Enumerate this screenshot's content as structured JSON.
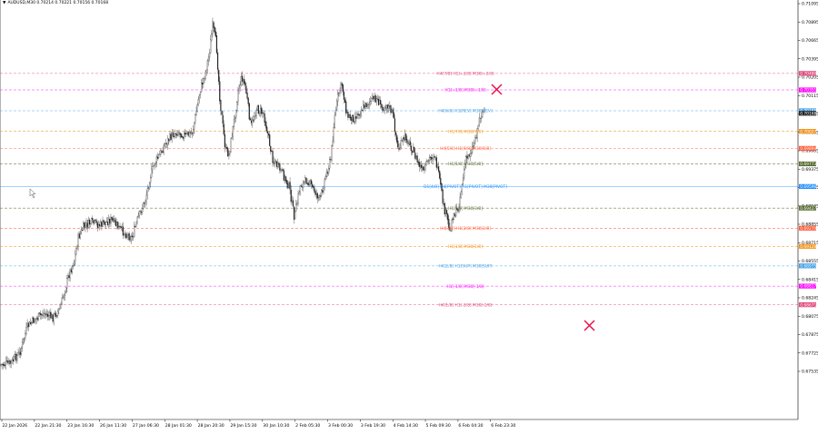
{
  "header": {
    "symbol_line": "AUDUSD,M30  0.70214 0.70221 0.70156 0.70168",
    "arrow_glyph": "▼"
  },
  "axis": {
    "price_ticks": [
      "0.71095",
      "0.70895",
      "0.70665",
      "0.70395",
      "0.70205",
      "0.70115",
      "0.69925",
      "0.69835",
      "0.69605",
      "0.69375",
      "0.69145",
      "0.68945",
      "0.68855",
      "0.68715",
      "0.68555",
      "0.68415",
      "0.68245",
      "0.68075",
      "0.67875",
      "0.67725",
      "0.67535"
    ],
    "time_ticks": [
      "22 Jan 2026",
      "22 Jan 21:30",
      "23 Jan 16:30",
      "26 Jan 11:30",
      "27 Jan 06:30",
      "28 Jan 01:30",
      "28 Jan 20:30",
      "29 Jan 15:30",
      "30 Jan 10:30",
      "2 Feb 05:30",
      "3 Feb 00:30",
      "3 Feb 19:30",
      "4 Feb 14:30",
      "5 Feb 09:30",
      "6 Feb 04:30",
      "6 Feb 23:30"
    ]
  },
  "levels": [
    {
      "label": "H4[7/8] H1[+2/8] M30[+2/8]",
      "price": "0.70480",
      "color": "#e0457b"
    },
    {
      "label": "H1[+1/8] M30[+1/8]",
      "price": "0.70351",
      "color": "#ff00ff"
    },
    {
      "label": "H4[6/8] H1[REV] M30[REV]",
      "price": "0.70188",
      "color": "#3d9ee8"
    },
    {
      "label": "H1[7/8] M30[7/8]",
      "price": "0.70027",
      "color": "#f3921a"
    },
    {
      "label": "H4[5/8] H1[6/8] M30[6/8]",
      "price": "0.69894",
      "color": "#ff5a36"
    },
    {
      "label": "H1[5/8] M30[5/8]",
      "price": "0.69773",
      "color": "#556b2f"
    },
    {
      "label": "D1[4/8] H4[PIVOT] H1[PIVOT] M30[PIVOT]",
      "price": "0.69596",
      "color": "#1e90ff"
    },
    {
      "label": "H1[3/8] M30[3/8]",
      "price": "0.69427",
      "color": "#556b2f"
    },
    {
      "label": "H4[3/8] H1[2/8] M30[2/8]",
      "price": "0.69270",
      "color": "#ff5a36"
    },
    {
      "label": "H1[1/8] M30[1/8]",
      "price": "0.69128",
      "color": "#f3921a"
    },
    {
      "label": "H4[2/8] H1[SUP] M30[SUP]",
      "price": "0.68975",
      "color": "#3d9ee8"
    },
    {
      "label": "H1[-1/8] M30[-1/8]",
      "price": "0.68817",
      "color": "#ff00ff"
    },
    {
      "label": "H4[1/8] H1[-2/8] M30[-2/8]",
      "price": "0.68671",
      "color": "#e0457b"
    }
  ],
  "current_price": {
    "price": "0.70168",
    "color": "#1e1e1e"
  },
  "markers": {
    "cross_color": "#e8114d"
  }
}
